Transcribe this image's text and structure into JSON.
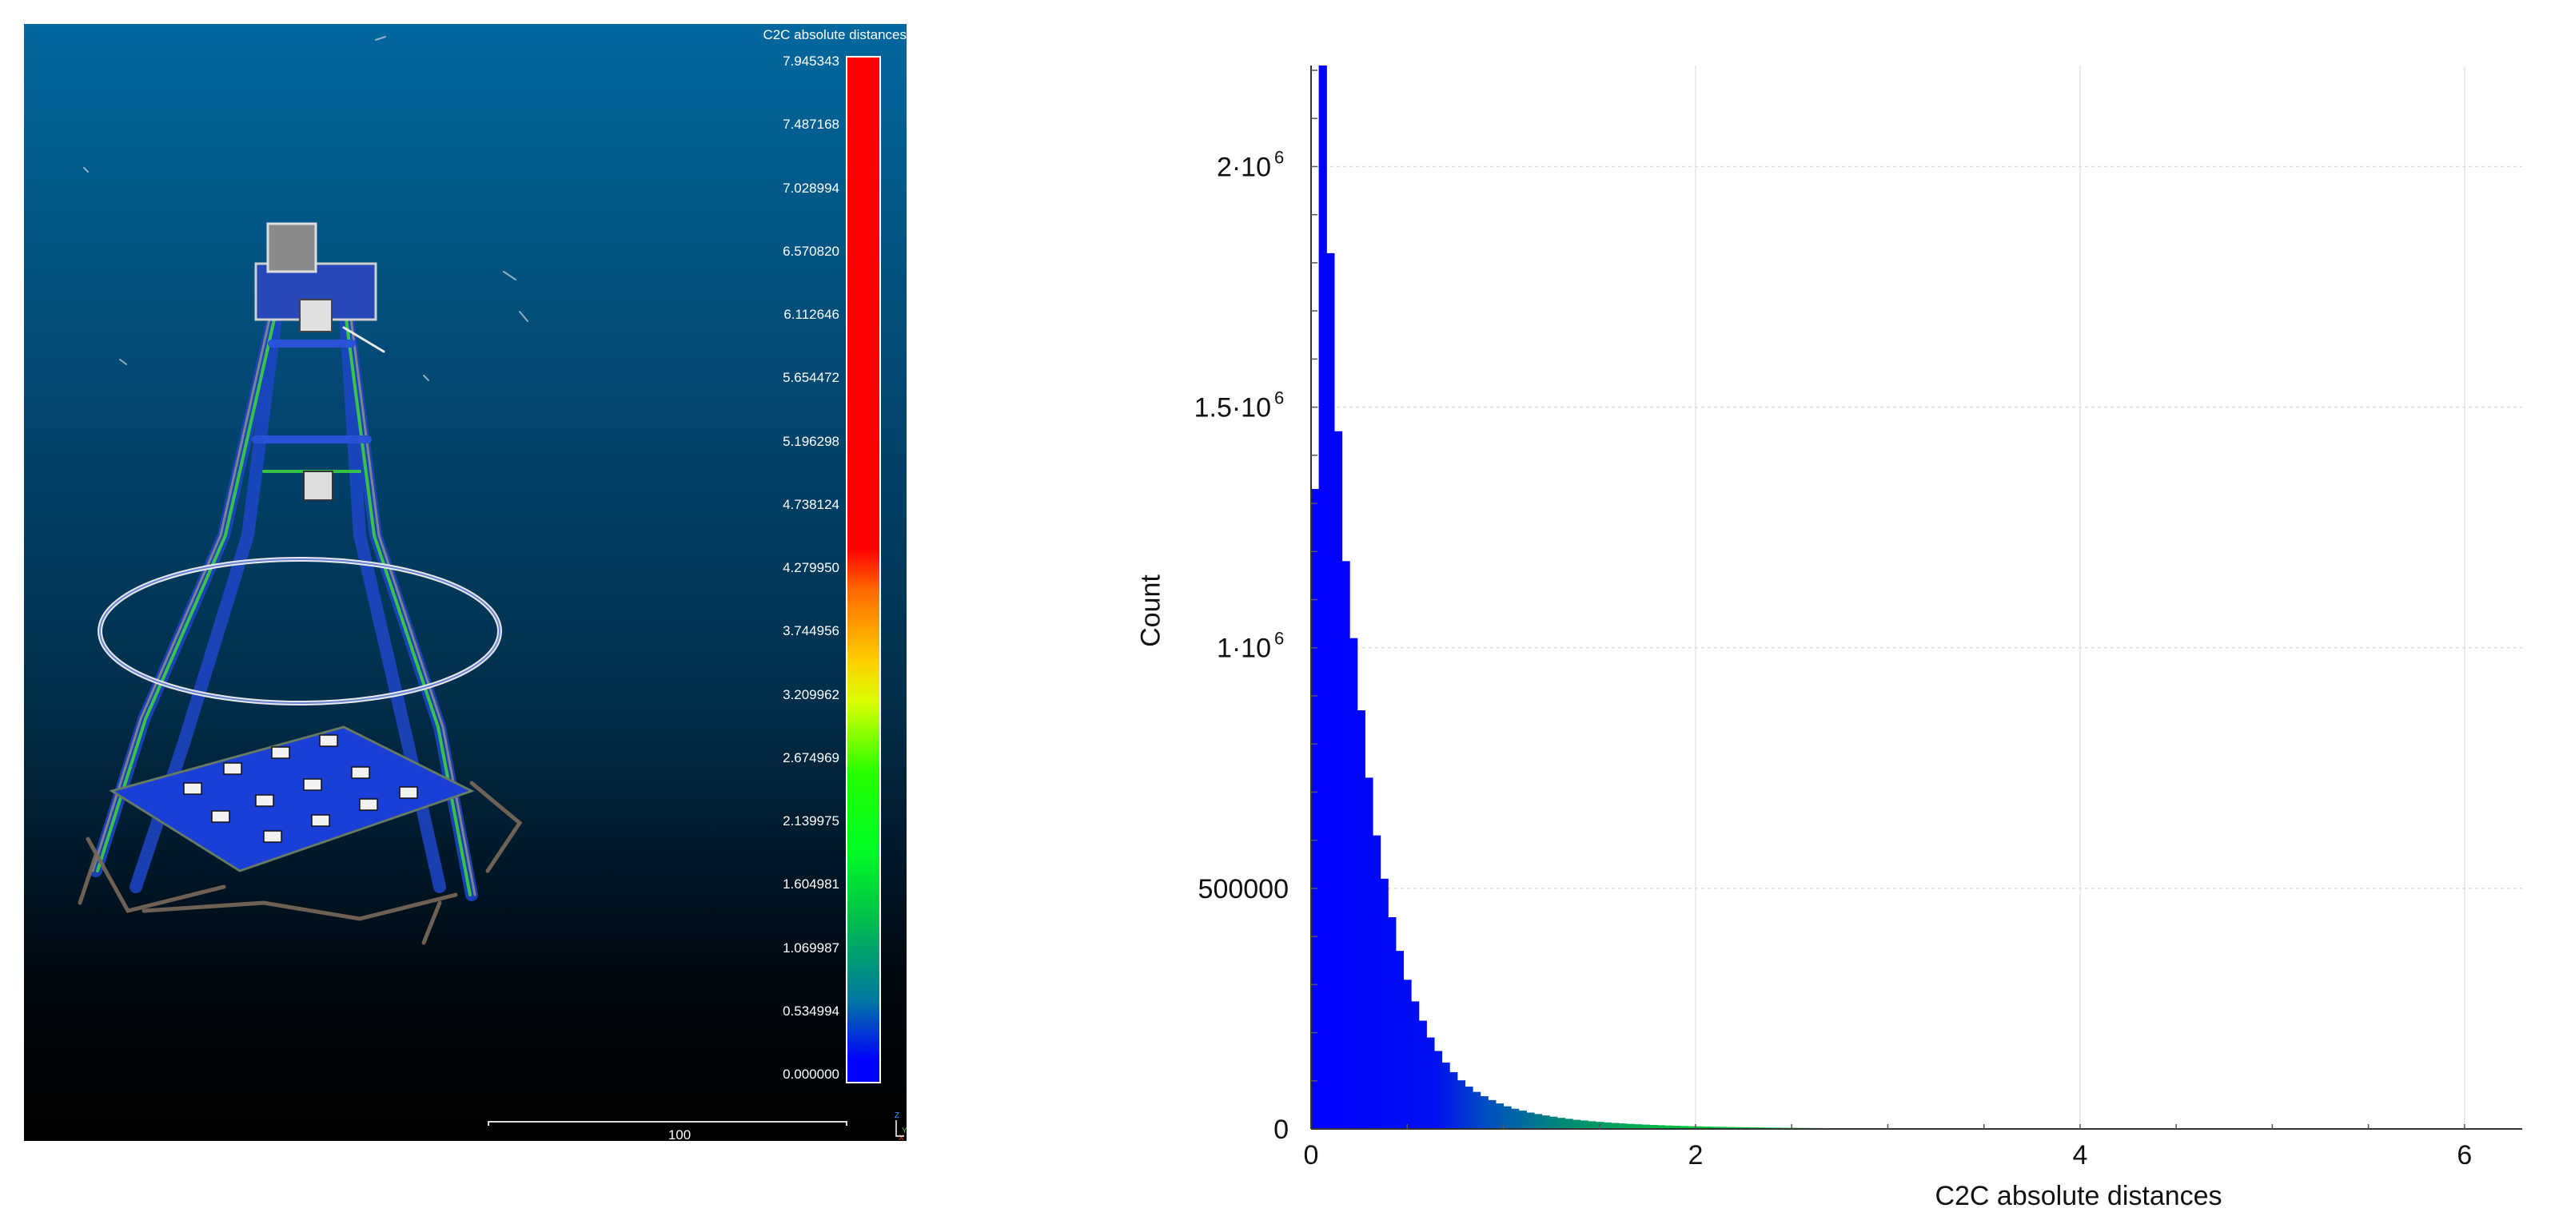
{
  "viewer": {
    "scalar_field_title": "C2C absolute distances",
    "color_scale_ticks": [
      "7.945343",
      "7.487168",
      "7.028994",
      "6.570820",
      "6.112646",
      "5.654472",
      "5.196298",
      "4.738124",
      "4.279950",
      "3.744956",
      "3.209962",
      "2.674969",
      "2.139975",
      "1.604981",
      "1.069987",
      "0.534994",
      "0.000000"
    ],
    "scale_bar_label": "100",
    "axis_labels": {
      "z": "Z",
      "y": "Y",
      "x": "X"
    },
    "colors": {
      "background_top": "#02689e",
      "background_bottom": "#000000"
    }
  },
  "histogram": {
    "xlabel": "C2C absolute distances",
    "ylabel": "Count"
  },
  "chart_data": {
    "type": "bar",
    "xlabel": "C2C absolute distances",
    "ylabel": "Count",
    "xlim": [
      0,
      6.3
    ],
    "ylim": [
      0,
      2210000
    ],
    "x_ticks": [
      {
        "value": 0,
        "label": "0"
      },
      {
        "value": 2,
        "label": "2"
      },
      {
        "value": 4,
        "label": "4"
      },
      {
        "value": 6,
        "label": "6"
      }
    ],
    "y_ticks": [
      {
        "value": 0,
        "mant": "0",
        "exp": ""
      },
      {
        "value": 500000,
        "mant": "500000",
        "exp": ""
      },
      {
        "value": 1000000,
        "mant": "1·10",
        "exp": "6"
      },
      {
        "value": 1500000,
        "mant": "1.5·10",
        "exp": "6"
      },
      {
        "value": 2000000,
        "mant": "2·10",
        "exp": "6"
      }
    ],
    "grid": true,
    "bin_width": 0.04,
    "values": [
      1330000,
      2210000,
      1820000,
      1450000,
      1180000,
      1020000,
      870000,
      730000,
      610000,
      520000,
      440000,
      370000,
      310000,
      265000,
      225000,
      190000,
      162000,
      138000,
      118000,
      101000,
      88000,
      77000,
      68000,
      60000,
      53000,
      47000,
      42000,
      38000,
      34000,
      31000,
      28000,
      25500,
      23000,
      21000,
      19000,
      17500,
      16000,
      14700,
      13500,
      12400,
      11400,
      10500,
      9700,
      9000,
      8300,
      7700,
      7100,
      6600,
      6100,
      5700,
      5300,
      4900,
      4600,
      4300,
      4000,
      3700,
      3450,
      3200,
      3000,
      2800,
      2600,
      2450,
      2300,
      2150,
      2000,
      1880,
      1760,
      1650,
      1550,
      1450,
      1360,
      1280,
      1200,
      1130,
      1060,
      1000,
      940,
      880,
      830,
      780,
      730,
      690,
      650,
      610,
      575,
      540,
      510,
      480,
      450,
      425,
      400,
      375,
      355,
      335,
      315,
      295,
      280,
      265,
      250,
      235,
      220,
      210,
      198,
      186,
      175,
      165,
      155,
      146,
      138,
      130,
      122,
      115,
      108,
      102,
      96,
      90,
      85,
      80,
      75,
      71,
      67,
      63,
      59,
      56,
      53,
      50,
      47,
      44,
      41,
      39,
      37,
      35,
      33,
      31,
      29,
      27,
      26,
      24,
      23,
      22,
      21,
      20,
      19,
      18,
      17,
      16,
      15,
      14,
      13,
      12,
      12,
      11,
      10,
      10,
      9,
      9,
      8,
      8,
      7,
      7,
      7,
      6,
      6,
      5,
      5,
      5,
      5,
      4
    ]
  }
}
